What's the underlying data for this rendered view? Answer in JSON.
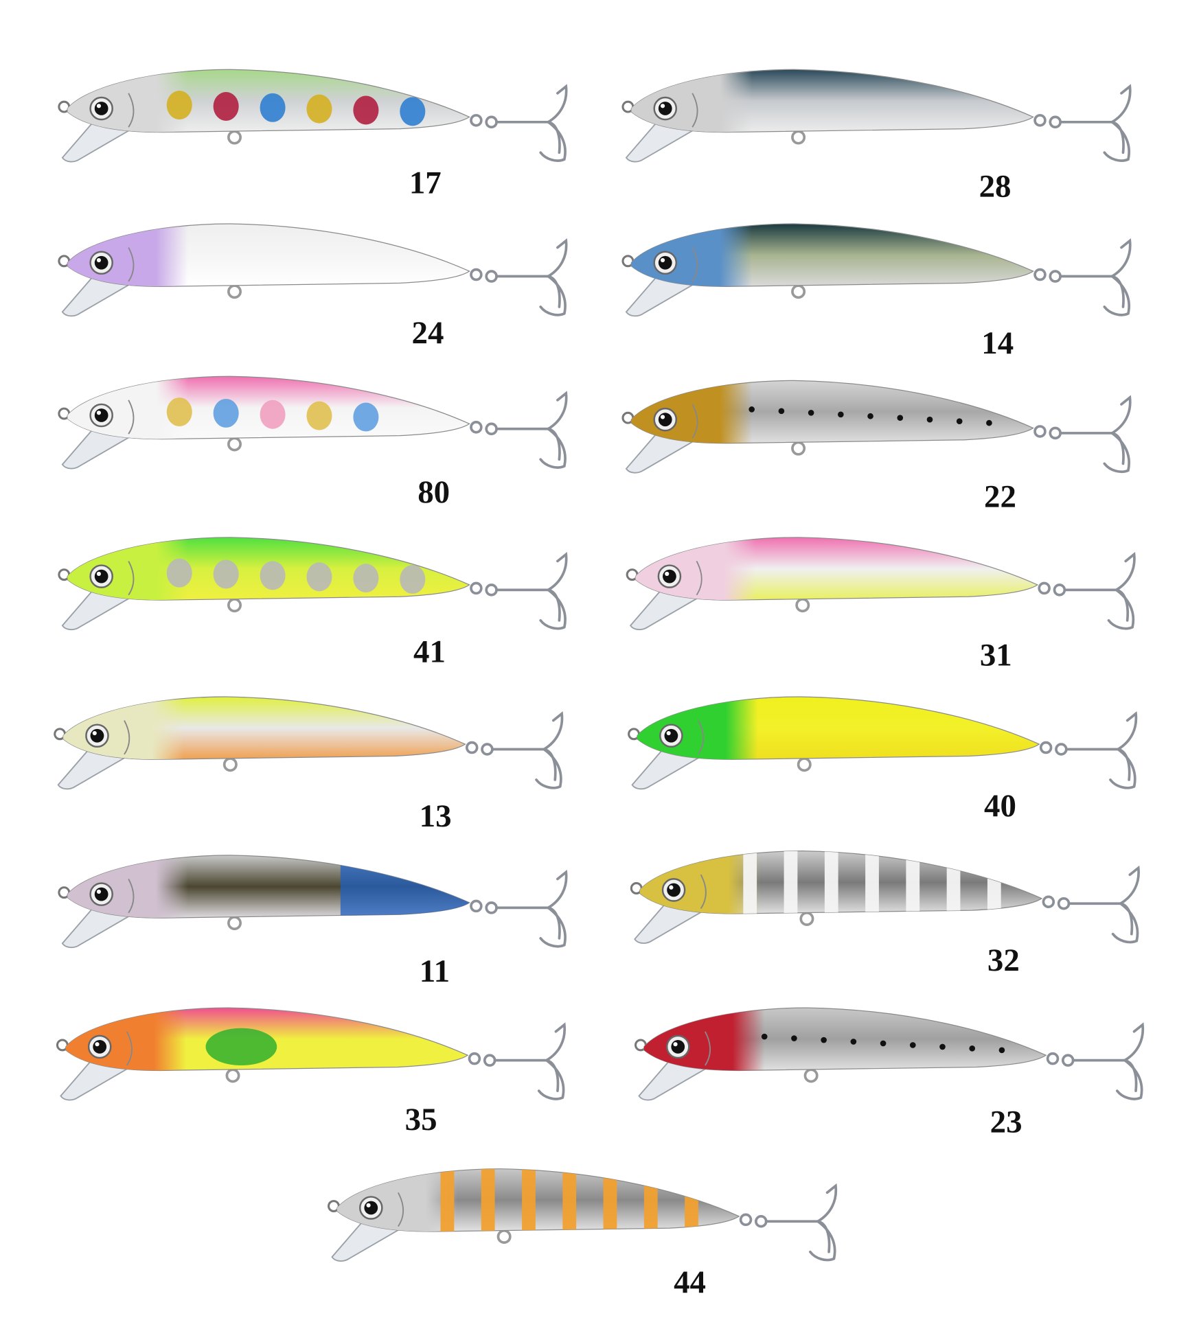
{
  "lures": [
    {
      "number": "17",
      "colors": {
        "top": "#a8d88a",
        "mid": "#cfd2d4",
        "bottom": "#eeeeee",
        "head": "#d8d8d8"
      },
      "pattern": "spots",
      "pattern_colors": [
        "#d4b020",
        "#b02040",
        "#3080d0",
        "#d4b020",
        "#b02040",
        "#3080d0"
      ]
    },
    {
      "number": "28",
      "colors": {
        "top": "#2a4a5a",
        "mid": "#c6cace",
        "bottom": "#ececec",
        "head": "#d0d0d0"
      },
      "pattern": "none",
      "pattern_colors": []
    },
    {
      "number": "24",
      "colors": {
        "top": "#efefef",
        "mid": "#f5f5f5",
        "bottom": "#ffffff",
        "head": "#c8a8e8"
      },
      "pattern": "none",
      "pattern_colors": []
    },
    {
      "number": "14",
      "colors": {
        "top": "#1a3a40",
        "mid": "#a8b490",
        "bottom": "#dadada",
        "head": "#5a90c8"
      },
      "pattern": "none",
      "pattern_colors": []
    },
    {
      "number": "80",
      "colors": {
        "top": "#f070b0",
        "mid": "#f4f4f4",
        "bottom": "#fafafa",
        "head": "#f4f4f4"
      },
      "pattern": "spots",
      "pattern_colors": [
        "#e0c050",
        "#60a0e0",
        "#f0a0c0",
        "#e0c050",
        "#60a0e0"
      ]
    },
    {
      "number": "22",
      "colors": {
        "top": "#d4d4d4",
        "mid": "#a8a8a8",
        "bottom": "#e0e0e0",
        "head": "#c09020"
      },
      "pattern": "dots",
      "pattern_colors": [
        "#111111"
      ]
    },
    {
      "number": "41",
      "colors": {
        "top": "#50e040",
        "mid": "#d8f040",
        "bottom": "#f0f040",
        "head": "#c8f040"
      },
      "pattern": "spots",
      "pattern_colors": [
        "#b8b8b8",
        "#b8b8b8",
        "#b8b8b8",
        "#b8b8b8",
        "#b8b8b8",
        "#b8b8b8"
      ]
    },
    {
      "number": "31",
      "colors": {
        "top": "#f070b0",
        "mid": "#f0f0f0",
        "bottom": "#e8f060",
        "head": "#f0d0e0"
      },
      "pattern": "none",
      "pattern_colors": []
    },
    {
      "number": "13",
      "colors": {
        "top": "#e0f040",
        "mid": "#e8e8e8",
        "bottom": "#f0a050",
        "head": "#e8e8c0"
      },
      "pattern": "none",
      "pattern_colors": []
    },
    {
      "number": "40",
      "colors": {
        "top": "#f0f020",
        "mid": "#f2f028",
        "bottom": "#f0e020",
        "head": "#30d030"
      },
      "pattern": "none",
      "pattern_colors": []
    },
    {
      "number": "11",
      "colors": {
        "top": "#c8c8c8",
        "mid": "#4a4630",
        "bottom": "#e0dce0",
        "head": "#d0c0d0"
      },
      "pattern": "tail",
      "pattern_colors": [
        "#2060c0"
      ]
    },
    {
      "number": "32",
      "colors": {
        "top": "#cccccc",
        "mid": "#7a7a7a",
        "bottom": "#e0e0e0",
        "head": "#d8c040"
      },
      "pattern": "stripes",
      "pattern_colors": [
        "#f4f4f4"
      ]
    },
    {
      "number": "35",
      "colors": {
        "top": "#f05090",
        "mid": "#f0f040",
        "bottom": "#f0f040",
        "head": "#f08030"
      },
      "pattern": "blob",
      "pattern_colors": [
        "#30b030"
      ]
    },
    {
      "number": "23",
      "colors": {
        "top": "#c8c8c8",
        "mid": "#a0a0a0",
        "bottom": "#e0e0e0",
        "head": "#c02030"
      },
      "pattern": "dots",
      "pattern_colors": [
        "#111111"
      ]
    },
    {
      "number": "44",
      "colors": {
        "top": "#c8c8c8",
        "mid": "#8a8a8a",
        "bottom": "#e4e4e4",
        "head": "#d0d0d0"
      },
      "pattern": "stripes",
      "pattern_colors": [
        "#f0a030"
      ]
    }
  ]
}
